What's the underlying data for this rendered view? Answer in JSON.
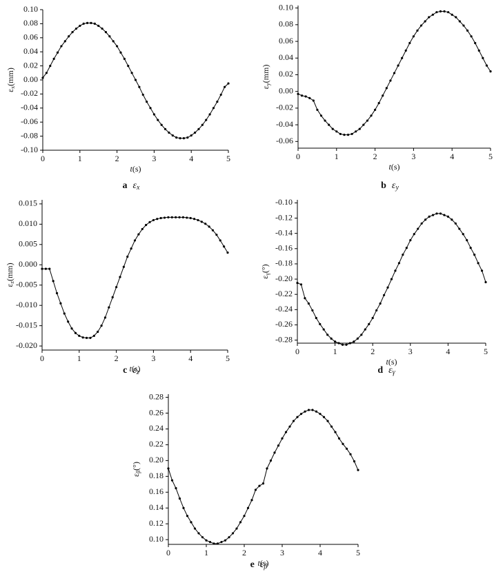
{
  "chart_data": [
    {
      "type": "line",
      "color": "#000000",
      "y_label": {
        "symbol": "ε",
        "subscript": "x",
        "unit": "(mm)"
      },
      "x_label": {
        "var": "t",
        "unit": "(s)"
      },
      "caption": {
        "letter": "a",
        "symbol": "ε",
        "subscript": "x"
      },
      "x": [
        0,
        0.1,
        0.2,
        0.3,
        0.4,
        0.5,
        0.6,
        0.7,
        0.8,
        0.9,
        1,
        1.1,
        1.2,
        1.3,
        1.4,
        1.5,
        1.6,
        1.7,
        1.8,
        1.9,
        2,
        2.1,
        2.2,
        2.3,
        2.4,
        2.5,
        2.6,
        2.7,
        2.8,
        2.9,
        3,
        3.1,
        3.2,
        3.3,
        3.4,
        3.5,
        3.6,
        3.7,
        3.8,
        3.9,
        4,
        4.1,
        4.2,
        4.3,
        4.4,
        4.5,
        4.6,
        4.7,
        4.8,
        4.9,
        5
      ],
      "values": [
        0.003,
        0.01,
        0.02,
        0.03,
        0.039,
        0.048,
        0.055,
        0.062,
        0.068,
        0.073,
        0.077,
        0.08,
        0.081,
        0.081,
        0.08,
        0.077,
        0.073,
        0.068,
        0.062,
        0.055,
        0.048,
        0.039,
        0.03,
        0.02,
        0.01,
        0,
        -0.01,
        -0.021,
        -0.031,
        -0.04,
        -0.049,
        -0.057,
        -0.064,
        -0.07,
        -0.075,
        -0.079,
        -0.082,
        -0.083,
        -0.083,
        -0.082,
        -0.079,
        -0.075,
        -0.07,
        -0.064,
        -0.057,
        -0.049,
        -0.04,
        -0.031,
        -0.021,
        -0.01,
        -0.005
      ],
      "xlim": [
        0,
        5
      ],
      "xticks": [
        0,
        1,
        2,
        3,
        4,
        5
      ],
      "ylim": [
        -0.1,
        0.1
      ],
      "yticks": [
        {
          "value": 0.1,
          "label": "0.10"
        },
        0.08,
        0.06,
        0.04,
        0.02,
        {
          "value": 0,
          "label": "0.00"
        },
        -0.02,
        -0.04,
        -0.06,
        -0.08,
        {
          "value": -0.1,
          "label": "-0.10"
        }
      ]
    },
    {
      "type": "line",
      "color": "#000000",
      "y_label": {
        "symbol": "ε",
        "subscript": "y",
        "unit": "(mm)"
      },
      "x_label": {
        "var": "t",
        "unit": "(s)"
      },
      "caption": {
        "letter": "b",
        "symbol": "ε",
        "subscript": "y"
      },
      "x": [
        0,
        0.1,
        0.2,
        0.3,
        0.4,
        0.5,
        0.6,
        0.7,
        0.8,
        0.9,
        1,
        1.1,
        1.2,
        1.3,
        1.4,
        1.5,
        1.6,
        1.7,
        1.8,
        1.9,
        2,
        2.1,
        2.2,
        2.3,
        2.4,
        2.5,
        2.6,
        2.7,
        2.8,
        2.9,
        3,
        3.1,
        3.2,
        3.3,
        3.4,
        3.5,
        3.6,
        3.7,
        3.8,
        3.9,
        4,
        4.1,
        4.2,
        4.3,
        4.4,
        4.5,
        4.6,
        4.7,
        4.8,
        4.9,
        5
      ],
      "values": [
        -0.003,
        -0.005,
        -0.006,
        -0.008,
        -0.011,
        -0.022,
        -0.029,
        -0.035,
        -0.04,
        -0.045,
        -0.048,
        -0.051,
        -0.052,
        -0.052,
        -0.051,
        -0.048,
        -0.045,
        -0.04,
        -0.035,
        -0.029,
        -0.022,
        -0.014,
        -0.005,
        0.004,
        0.013,
        0.022,
        0.031,
        0.04,
        0.049,
        0.058,
        0.066,
        0.073,
        0.079,
        0.084,
        0.089,
        0.092,
        0.095,
        0.096,
        0.096,
        0.095,
        0.092,
        0.089,
        0.084,
        0.079,
        0.073,
        0.066,
        0.058,
        0.049,
        0.04,
        0.031,
        0.024
      ],
      "xlim": [
        0,
        5
      ],
      "xticks": [
        0,
        1,
        2,
        3,
        4,
        5
      ],
      "ylim": [
        -0.068,
        0.103
      ],
      "yticks": [
        {
          "value": 0.1,
          "label": "0.10"
        },
        0.08,
        0.06,
        0.04,
        0.02,
        {
          "value": 0,
          "label": "0.00"
        },
        -0.02,
        -0.04,
        -0.06
      ]
    },
    {
      "type": "line",
      "color": "#000000",
      "y_label": {
        "symbol": "ε",
        "subscript": "z",
        "unit": "(mm)"
      },
      "x_label": {
        "var": "t",
        "unit": "(s)"
      },
      "caption": {
        "letter": "c",
        "symbol": "ε",
        "subscript": "z"
      },
      "x": [
        0,
        0.1,
        0.2,
        0.3,
        0.4,
        0.5,
        0.6,
        0.7,
        0.8,
        0.9,
        1,
        1.1,
        1.2,
        1.3,
        1.4,
        1.5,
        1.6,
        1.7,
        1.8,
        1.9,
        2,
        2.1,
        2.2,
        2.3,
        2.4,
        2.5,
        2.6,
        2.7,
        2.8,
        2.9,
        3,
        3.1,
        3.2,
        3.3,
        3.4,
        3.5,
        3.6,
        3.7,
        3.8,
        3.9,
        4,
        4.1,
        4.2,
        4.3,
        4.4,
        4.5,
        4.6,
        4.7,
        4.8,
        4.9,
        5
      ],
      "values": [
        -0.001,
        -0.001,
        -0.001,
        -0.004,
        -0.007,
        -0.0095,
        -0.012,
        -0.014,
        -0.0157,
        -0.0168,
        -0.0175,
        -0.0179,
        -0.018,
        -0.018,
        -0.0175,
        -0.0165,
        -0.015,
        -0.013,
        -0.0105,
        -0.008,
        -0.0055,
        -0.003,
        -0.0005,
        0.002,
        0.004,
        0.006,
        0.0075,
        0.0088,
        0.0098,
        0.0105,
        0.011,
        0.0113,
        0.0115,
        0.0116,
        0.0117,
        0.0117,
        0.0117,
        0.0117,
        0.0117,
        0.0116,
        0.0115,
        0.0113,
        0.011,
        0.0106,
        0.0101,
        0.0094,
        0.0085,
        0.0074,
        0.006,
        0.0045,
        0.003
      ],
      "xlim": [
        0,
        5
      ],
      "xticks": [
        0,
        1,
        2,
        3,
        4,
        5
      ],
      "ylim": [
        -0.021,
        0.016
      ],
      "yticks": [
        0.015,
        {
          "value": 0.01,
          "label": "0.010"
        },
        0.005,
        {
          "value": 0,
          "label": "0.000"
        },
        -0.005,
        {
          "value": -0.01,
          "label": "-0.010"
        },
        -0.015,
        {
          "value": -0.02,
          "label": "-0.020"
        }
      ]
    },
    {
      "type": "line",
      "color": "#000000",
      "y_label": {
        "symbol": "ε",
        "subscript": "γ",
        "unit": "(°)"
      },
      "x_label": {
        "var": "t",
        "unit": "(s)"
      },
      "caption": {
        "letter": "d",
        "symbol": "ε",
        "subscript": "γ"
      },
      "x": [
        0,
        0.1,
        0.2,
        0.3,
        0.4,
        0.5,
        0.6,
        0.7,
        0.8,
        0.9,
        1,
        1.1,
        1.2,
        1.3,
        1.4,
        1.5,
        1.6,
        1.7,
        1.8,
        1.9,
        2,
        2.1,
        2.2,
        2.3,
        2.4,
        2.5,
        2.6,
        2.7,
        2.8,
        2.9,
        3,
        3.1,
        3.2,
        3.3,
        3.4,
        3.5,
        3.6,
        3.7,
        3.8,
        3.9,
        4,
        4.1,
        4.2,
        4.3,
        4.4,
        4.5,
        4.6,
        4.7,
        4.8,
        4.9,
        5
      ],
      "values": [
        -0.205,
        -0.207,
        -0.225,
        -0.232,
        -0.241,
        -0.251,
        -0.259,
        -0.266,
        -0.273,
        -0.278,
        -0.282,
        -0.284,
        -0.286,
        -0.286,
        -0.284,
        -0.282,
        -0.278,
        -0.273,
        -0.266,
        -0.259,
        -0.251,
        -0.241,
        -0.232,
        -0.221,
        -0.211,
        -0.2,
        -0.189,
        -0.179,
        -0.168,
        -0.159,
        -0.149,
        -0.141,
        -0.134,
        -0.127,
        -0.122,
        -0.118,
        -0.116,
        -0.114,
        -0.114,
        -0.116,
        -0.118,
        -0.122,
        -0.127,
        -0.134,
        -0.141,
        -0.149,
        -0.159,
        -0.168,
        -0.179,
        -0.189,
        -0.204
      ],
      "xlim": [
        0,
        5
      ],
      "xticks": [
        0,
        1,
        2,
        3,
        4,
        5
      ],
      "ylim": [
        -0.284,
        -0.096
      ],
      "yticks": [
        {
          "value": -0.1,
          "label": "-0.10"
        },
        -0.12,
        -0.14,
        -0.16,
        -0.18,
        {
          "value": -0.2,
          "label": "-0.20"
        },
        -0.22,
        -0.24,
        -0.26,
        -0.28
      ]
    },
    {
      "type": "line",
      "color": "#000000",
      "y_label": {
        "symbol": "ε",
        "subscript": "β",
        "unit": "(°)"
      },
      "x_label": {
        "var": "t",
        "unit": "(s)"
      },
      "caption": {
        "letter": "e",
        "symbol": "ε",
        "subscript": "β"
      },
      "x": [
        0,
        0.1,
        0.2,
        0.3,
        0.4,
        0.5,
        0.6,
        0.7,
        0.8,
        0.9,
        1,
        1.1,
        1.2,
        1.3,
        1.4,
        1.5,
        1.6,
        1.7,
        1.8,
        1.9,
        2,
        2.1,
        2.2,
        2.3,
        2.4,
        2.5,
        2.6,
        2.7,
        2.8,
        2.9,
        3,
        3.1,
        3.2,
        3.3,
        3.4,
        3.5,
        3.6,
        3.7,
        3.8,
        3.9,
        4,
        4.1,
        4.2,
        4.3,
        4.4,
        4.5,
        4.6,
        4.7,
        4.8,
        4.9,
        5
      ],
      "values": [
        0.19,
        0.175,
        0.165,
        0.152,
        0.14,
        0.13,
        0.122,
        0.114,
        0.108,
        0.103,
        0.099,
        0.097,
        0.095,
        0.095,
        0.097,
        0.099,
        0.103,
        0.108,
        0.114,
        0.122,
        0.13,
        0.14,
        0.15,
        0.163,
        0.168,
        0.171,
        0.19,
        0.2,
        0.21,
        0.219,
        0.228,
        0.236,
        0.243,
        0.25,
        0.255,
        0.259,
        0.262,
        0.264,
        0.264,
        0.262,
        0.259,
        0.255,
        0.25,
        0.243,
        0.236,
        0.228,
        0.221,
        0.215,
        0.208,
        0.199,
        0.188
      ],
      "xlim": [
        0,
        5
      ],
      "xticks": [
        0,
        1,
        2,
        3,
        4,
        5
      ],
      "ylim": [
        0.094,
        0.284
      ],
      "yticks": [
        0.28,
        0.26,
        0.24,
        0.22,
        {
          "value": 0.2,
          "label": "0.20"
        },
        0.18,
        0.16,
        0.14,
        0.12,
        {
          "value": 0.1,
          "label": "0.10"
        }
      ]
    }
  ]
}
